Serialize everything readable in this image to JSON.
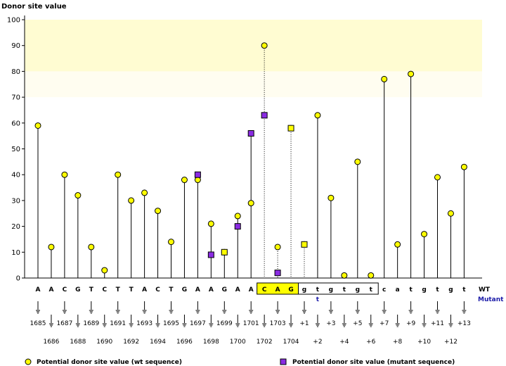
{
  "chart_data": {
    "type": "scatter",
    "ylabel": "Donor site value",
    "ylim": [
      0,
      100
    ],
    "yticks": [
      0,
      10,
      20,
      30,
      40,
      50,
      60,
      70,
      80,
      90,
      100
    ],
    "grid": false,
    "highlight_bands": [
      {
        "from": 80,
        "to": 100,
        "color": "#fffcd2"
      },
      {
        "from": 70,
        "to": 80,
        "color": "#fffdf0"
      }
    ],
    "bases": [
      "A",
      "A",
      "C",
      "G",
      "T",
      "C",
      "T",
      "T",
      "A",
      "C",
      "T",
      "G",
      "A",
      "A",
      "G",
      "A",
      "A",
      "C",
      "A",
      "G",
      "g",
      "t",
      "g",
      "t",
      "g",
      "t",
      "c",
      "a",
      "t",
      "g",
      "t",
      "g",
      "t"
    ],
    "mutant_bases": {
      "21": "t"
    },
    "positions": [
      "1685",
      "1686",
      "1687",
      "1688",
      "1689",
      "1690",
      "1691",
      "1692",
      "1693",
      "1694",
      "1695",
      "1696",
      "1697",
      "1698",
      "1699",
      "1700",
      "1701",
      "1702",
      "1703",
      "1704",
      "+1",
      "+2",
      "+3",
      "+4",
      "+5",
      "+6",
      "+7",
      "+8",
      "+9",
      "+10",
      "+11",
      "+12",
      "+13"
    ],
    "exon_box": {
      "from": 17,
      "to": 19,
      "fill": "#ffff00"
    },
    "intron_box": {
      "from": 20,
      "to": 25
    },
    "row_labels": {
      "wt": "WT",
      "mutant": "Mutant"
    },
    "series": [
      {
        "name": "Potential donor site value (wt sequence)",
        "color": "#ffff00",
        "marker": "circle",
        "values": [
          59,
          12,
          40,
          32,
          12,
          3,
          40,
          30,
          33,
          26,
          14,
          38,
          38,
          21,
          10,
          24,
          29,
          90,
          12,
          58,
          13,
          63,
          31,
          1,
          45,
          1,
          77,
          13,
          79,
          17,
          39,
          25,
          43
        ]
      },
      {
        "name": "Potential donor site value (mutant sequence)",
        "color": "#8a2be2",
        "marker": "square",
        "points": [
          {
            "index": 12,
            "value": 40
          },
          {
            "index": 13,
            "value": 9
          },
          {
            "index": 14,
            "value": 10
          },
          {
            "index": 15,
            "value": 20
          },
          {
            "index": 16,
            "value": 56
          },
          {
            "index": 17,
            "value": 63
          },
          {
            "index": 18,
            "value": 2
          },
          {
            "index": 19,
            "value": 58
          },
          {
            "index": 20,
            "value": 13
          }
        ]
      }
    ]
  }
}
